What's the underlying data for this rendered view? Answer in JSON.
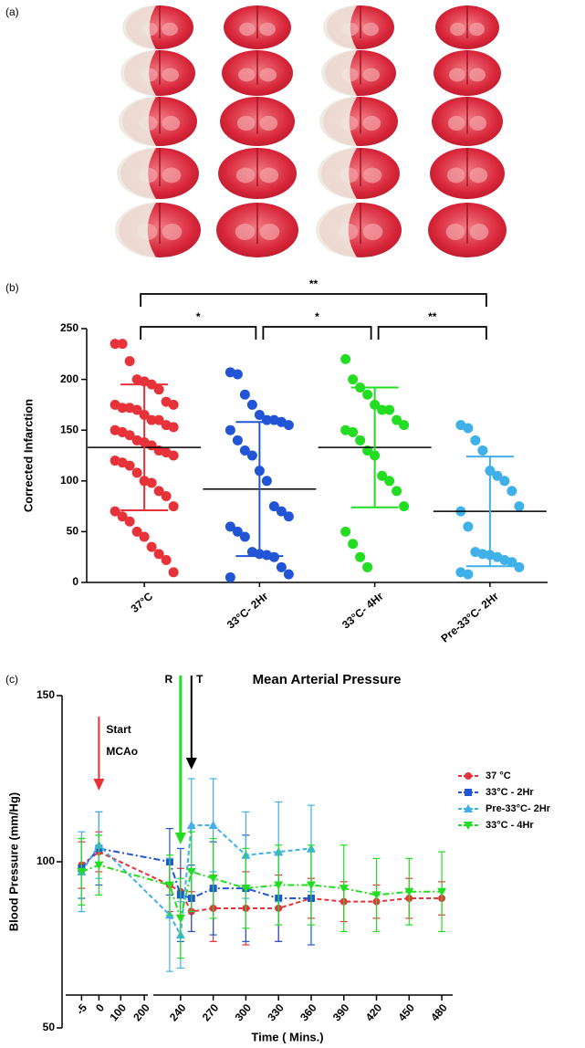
{
  "panels": [
    "(a)",
    "(b)",
    "(c)"
  ],
  "chart_data": [
    {
      "type": "strip",
      "ylabel": "Corrected Infarction",
      "categories": [
        "37°C",
        "33°C- 2Hr",
        "33°C- 4Hr",
        "Pre-33°C- 2Hr"
      ],
      "groups": [
        {
          "color": "#e8323a",
          "mean": 133,
          "sd": 62,
          "values": [
            235,
            235,
            218,
            200,
            198,
            195,
            190,
            178,
            175,
            175,
            172,
            172,
            170,
            165,
            160,
            160,
            155,
            153,
            150,
            148,
            145,
            140,
            138,
            135,
            130,
            128,
            125,
            120,
            118,
            115,
            108,
            100,
            98,
            90,
            85,
            75,
            70,
            65,
            60,
            50,
            45,
            35,
            28,
            22,
            10
          ]
        },
        {
          "color": "#2255d6",
          "mean": 92,
          "sd": 66,
          "values": [
            207,
            205,
            185,
            175,
            165,
            160,
            160,
            158,
            155,
            150,
            140,
            130,
            125,
            110,
            100,
            75,
            70,
            65,
            55,
            50,
            45,
            30,
            28,
            27,
            25,
            15,
            8,
            5
          ]
        },
        {
          "color": "#22dd22",
          "mean": 133,
          "sd": 59,
          "values": [
            220,
            200,
            192,
            185,
            175,
            170,
            170,
            160,
            155,
            150,
            148,
            140,
            130,
            125,
            105,
            100,
            90,
            75,
            50,
            38,
            25,
            15
          ]
        },
        {
          "color": "#3fb0e8",
          "mean": 70,
          "sd": 54,
          "values": [
            155,
            152,
            140,
            130,
            110,
            105,
            100,
            90,
            75,
            70,
            55,
            30,
            28,
            27,
            25,
            22,
            20,
            15,
            10,
            8
          ]
        }
      ],
      "ylim": [
        0,
        250
      ],
      "yticks": [
        0,
        50,
        100,
        150,
        200,
        250
      ],
      "comparisons": [
        {
          "groups": [
            0,
            3
          ],
          "label": "**"
        },
        {
          "groups": [
            0,
            1
          ],
          "label": "*"
        },
        {
          "groups": [
            1,
            2
          ],
          "label": "*"
        },
        {
          "groups": [
            2,
            3
          ],
          "label": "**"
        }
      ]
    },
    {
      "type": "line",
      "title": "Mean Arterial Pressure",
      "xlabel": "Time ( Mins.)",
      "ylabel": "Blood Pressure (mm/Hg)",
      "x_segments": [
        {
          "xlim": [
            -8,
            2
          ],
          "xticks": [
            -5,
            0
          ]
        },
        {
          "xlim": [
            60,
            215
          ],
          "xticks": [
            100,
            200
          ]
        },
        {
          "xlim": [
            220,
            490
          ],
          "xticks": [
            240,
            270,
            300,
            330,
            360,
            390,
            420,
            450,
            480
          ]
        }
      ],
      "ylim": [
        50,
        150
      ],
      "yticks": [
        50,
        100,
        150
      ],
      "legend": "right",
      "series": [
        {
          "name": "37 °C",
          "color": "#e8323a",
          "marker": "circle",
          "x": [
            -5,
            0,
            230,
            240,
            250,
            270,
            300,
            330,
            360,
            390,
            420,
            450,
            480
          ],
          "values": [
            99,
            103,
            93,
            91,
            85,
            86,
            86,
            86,
            89,
            88,
            88,
            89,
            89
          ],
          "errors": [
            7,
            6,
            8,
            7,
            6,
            10,
            11,
            10,
            6,
            6,
            5,
            6,
            5
          ]
        },
        {
          "name": "33°C - 2Hr",
          "color": "#2255d6",
          "marker": "square",
          "x": [
            -5,
            0,
            230,
            240,
            250,
            270,
            300,
            330,
            360
          ],
          "values": [
            98,
            104,
            100,
            90,
            89,
            92,
            92,
            89,
            89
          ],
          "errors": [
            9,
            11,
            10,
            14,
            10,
            14,
            16,
            13,
            14
          ]
        },
        {
          "name": "Pre-33°C- 2Hr",
          "color": "#3fb0e8",
          "marker": "triangle-up",
          "x": [
            -5,
            0,
            230,
            240,
            250,
            270,
            300,
            330,
            360
          ],
          "values": [
            97,
            105,
            84,
            78,
            111,
            111,
            102,
            103,
            104
          ],
          "errors": [
            12,
            10,
            17,
            10,
            14,
            14,
            13,
            15,
            13
          ]
        },
        {
          "name": "33°C - 4Hr",
          "color": "#22dd22",
          "marker": "triangle-down",
          "x": [
            -5,
            0,
            230,
            240,
            250,
            270,
            300,
            330,
            360,
            390,
            420,
            450,
            480
          ],
          "values": [
            97,
            99,
            93,
            83,
            97,
            95,
            92,
            93,
            93,
            92,
            90,
            91,
            91
          ],
          "errors": [
            10,
            9,
            9,
            12,
            12,
            12,
            12,
            12,
            12,
            13,
            11,
            10,
            12
          ]
        }
      ],
      "annotations": [
        {
          "lines": [
            "Start",
            "MCAo"
          ],
          "x": 0,
          "color": "#e8323a"
        },
        {
          "label": "R",
          "x": 240,
          "color": "#22dd22"
        },
        {
          "label": "T",
          "x": 250,
          "color": "#000000"
        }
      ]
    }
  ]
}
